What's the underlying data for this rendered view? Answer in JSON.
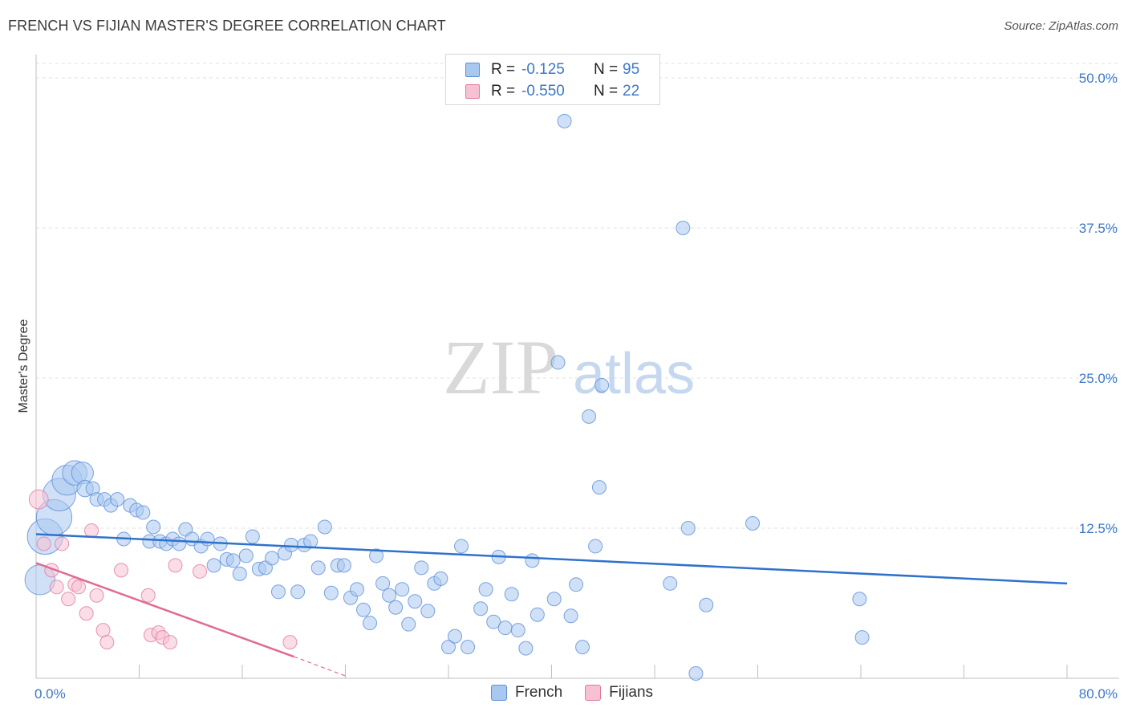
{
  "header": {
    "title": "FRENCH VS FIJIAN MASTER'S DEGREE CORRELATION CHART",
    "source": "Source: ZipAtlas.com"
  },
  "watermark": {
    "zip": "ZIP",
    "atlas": "atlas"
  },
  "legend": {
    "rows": [
      {
        "r_label": "R =",
        "r_value": "-0.125",
        "n_label": "N =",
        "n_value": "95",
        "color": "#a9c8f0",
        "edge": "#5b8fd6"
      },
      {
        "r_label": "R =",
        "r_value": "-0.550",
        "n_label": "N =",
        "n_value": "22",
        "color": "#f7c1d3",
        "edge": "#e07a9d"
      }
    ]
  },
  "bottom_legend": [
    {
      "label": "French",
      "color": "#a9c8f0",
      "edge": "#5b8fd6"
    },
    {
      "label": "Fijians",
      "color": "#f7c1d3",
      "edge": "#e07a9d"
    }
  ],
  "chart_data": {
    "type": "scatter",
    "title": "FRENCH VS FIJIAN MASTER'S DEGREE CORRELATION CHART",
    "xlabel": "",
    "ylabel": "Master's Degree",
    "xlim": [
      0,
      80
    ],
    "ylim": [
      0,
      50
    ],
    "x_tick_labels": [
      {
        "value": 0,
        "label": "0.0%"
      },
      {
        "value": 80,
        "label": "80.0%"
      }
    ],
    "y_tick_labels": [
      {
        "value": 12.5,
        "label": "12.5%"
      },
      {
        "value": 25,
        "label": "25.0%"
      },
      {
        "value": 37.5,
        "label": "37.5%"
      },
      {
        "value": 50,
        "label": "50.0%"
      }
    ],
    "series": [
      {
        "name": "French",
        "color": "#a9c8f0",
        "edge": "#5b8fd6",
        "trend": {
          "x0": 0,
          "y0": 12.0,
          "x1": 80,
          "y1": 7.9,
          "color": "#2f72cc"
        },
        "points": [
          [
            0.3,
            8.2,
            2.2
          ],
          [
            0.7,
            11.8,
            2.6
          ],
          [
            1.4,
            13.4,
            2.6
          ],
          [
            1.8,
            15.3,
            2.4
          ],
          [
            2.4,
            16.5,
            2.2
          ],
          [
            3.0,
            17.1,
            1.8
          ],
          [
            3.6,
            17.1,
            1.6
          ],
          [
            3.8,
            15.8,
            1.2
          ],
          [
            4.4,
            15.8,
            1.0
          ],
          [
            4.7,
            14.9,
            1.0
          ],
          [
            5.3,
            14.9,
            1.0
          ],
          [
            5.8,
            14.4,
            1.0
          ],
          [
            6.3,
            14.9,
            1.0
          ],
          [
            6.8,
            11.6,
            1.0
          ],
          [
            7.3,
            14.4,
            1.0
          ],
          [
            7.8,
            14.0,
            1.0
          ],
          [
            8.3,
            13.8,
            1.0
          ],
          [
            8.8,
            11.4,
            1.0
          ],
          [
            9.1,
            12.6,
            1.0
          ],
          [
            9.6,
            11.4,
            1.0
          ],
          [
            10.1,
            11.2,
            1.0
          ],
          [
            10.6,
            11.6,
            1.0
          ],
          [
            11.1,
            11.2,
            1.0
          ],
          [
            11.6,
            12.4,
            1.0
          ],
          [
            12.1,
            11.6,
            1.0
          ],
          [
            12.8,
            11.0,
            1.0
          ],
          [
            13.3,
            11.6,
            1.0
          ],
          [
            13.8,
            9.4,
            1.0
          ],
          [
            14.3,
            11.2,
            1.0
          ],
          [
            14.8,
            9.9,
            1.0
          ],
          [
            15.3,
            9.8,
            1.0
          ],
          [
            15.8,
            8.7,
            1.0
          ],
          [
            16.3,
            10.2,
            1.0
          ],
          [
            16.8,
            11.8,
            1.0
          ],
          [
            17.3,
            9.1,
            1.0
          ],
          [
            17.8,
            9.2,
            1.0
          ],
          [
            18.3,
            10.0,
            1.0
          ],
          [
            18.8,
            7.2,
            1.0
          ],
          [
            19.3,
            10.4,
            1.0
          ],
          [
            19.8,
            11.1,
            1.0
          ],
          [
            20.3,
            7.2,
            1.0
          ],
          [
            20.8,
            11.1,
            1.0
          ],
          [
            21.3,
            11.4,
            1.0
          ],
          [
            21.9,
            9.2,
            1.0
          ],
          [
            22.4,
            12.6,
            1.0
          ],
          [
            22.9,
            7.1,
            1.0
          ],
          [
            23.4,
            9.4,
            1.0
          ],
          [
            23.9,
            9.4,
            1.0
          ],
          [
            24.4,
            6.7,
            1.0
          ],
          [
            24.9,
            7.4,
            1.0
          ],
          [
            25.4,
            5.7,
            1.0
          ],
          [
            25.9,
            4.6,
            1.0
          ],
          [
            26.4,
            10.2,
            1.0
          ],
          [
            26.9,
            7.9,
            1.0
          ],
          [
            27.4,
            6.9,
            1.0
          ],
          [
            27.9,
            5.9,
            1.0
          ],
          [
            28.4,
            7.4,
            1.0
          ],
          [
            28.9,
            4.5,
            1.0
          ],
          [
            29.4,
            6.4,
            1.0
          ],
          [
            29.9,
            9.2,
            1.0
          ],
          [
            30.4,
            5.6,
            1.0
          ],
          [
            30.9,
            7.9,
            1.0
          ],
          [
            31.4,
            8.3,
            1.0
          ],
          [
            32.0,
            2.6,
            1.0
          ],
          [
            32.5,
            3.5,
            1.0
          ],
          [
            33.0,
            11.0,
            1.0
          ],
          [
            33.5,
            2.6,
            1.0
          ],
          [
            34.5,
            5.8,
            1.0
          ],
          [
            34.9,
            7.4,
            1.0
          ],
          [
            35.5,
            4.7,
            1.0
          ],
          [
            35.9,
            10.1,
            1.0
          ],
          [
            36.4,
            4.2,
            1.0
          ],
          [
            36.9,
            7.0,
            1.0
          ],
          [
            37.4,
            4.0,
            1.0
          ],
          [
            38.0,
            2.5,
            1.0
          ],
          [
            38.5,
            9.8,
            1.0
          ],
          [
            38.9,
            5.3,
            1.0
          ],
          [
            40.2,
            6.6,
            1.0
          ],
          [
            40.5,
            26.3,
            1.0
          ],
          [
            41.0,
            46.4,
            1.0
          ],
          [
            41.5,
            5.2,
            1.0
          ],
          [
            41.9,
            7.8,
            1.0
          ],
          [
            42.4,
            2.6,
            1.0
          ],
          [
            42.9,
            21.8,
            1.0
          ],
          [
            43.4,
            11.0,
            1.0
          ],
          [
            43.7,
            15.9,
            1.0
          ],
          [
            43.9,
            24.4,
            1.0
          ],
          [
            49.2,
            7.9,
            1.0
          ],
          [
            50.2,
            37.5,
            1.0
          ],
          [
            50.6,
            12.5,
            1.0
          ],
          [
            51.2,
            0.4,
            1.0
          ],
          [
            52.0,
            6.1,
            1.0
          ],
          [
            55.6,
            12.9,
            1.0
          ],
          [
            63.9,
            6.6,
            1.0
          ],
          [
            64.1,
            3.4,
            1.0
          ]
        ]
      },
      {
        "name": "Fijians",
        "color": "#f7c1d3",
        "edge": "#e07a9d",
        "trend": {
          "x0": 0,
          "y0": 9.6,
          "x1": 20.0,
          "y1": 1.8,
          "dash_x1": 24.0,
          "dash_y1": 0.2,
          "color": "#e06a93"
        },
        "points": [
          [
            0.2,
            14.9,
            1.4
          ],
          [
            0.6,
            11.2,
            1.0
          ],
          [
            1.2,
            9.0,
            1.0
          ],
          [
            1.6,
            7.6,
            1.0
          ],
          [
            2.0,
            11.2,
            1.0
          ],
          [
            2.5,
            6.6,
            1.0
          ],
          [
            3.0,
            7.8,
            1.0
          ],
          [
            3.3,
            7.6,
            1.0
          ],
          [
            3.9,
            5.4,
            1.0
          ],
          [
            4.3,
            12.3,
            1.0
          ],
          [
            4.7,
            6.9,
            1.0
          ],
          [
            5.2,
            4.0,
            1.0
          ],
          [
            5.5,
            3.0,
            1.0
          ],
          [
            6.6,
            9.0,
            1.0
          ],
          [
            8.7,
            6.9,
            1.0
          ],
          [
            8.9,
            3.6,
            1.0
          ],
          [
            9.5,
            3.8,
            1.0
          ],
          [
            9.8,
            3.4,
            1.0
          ],
          [
            10.4,
            3.0,
            1.0
          ],
          [
            10.8,
            9.4,
            1.0
          ],
          [
            12.7,
            8.9,
            1.0
          ],
          [
            19.7,
            3.0,
            1.0
          ]
        ]
      }
    ]
  }
}
